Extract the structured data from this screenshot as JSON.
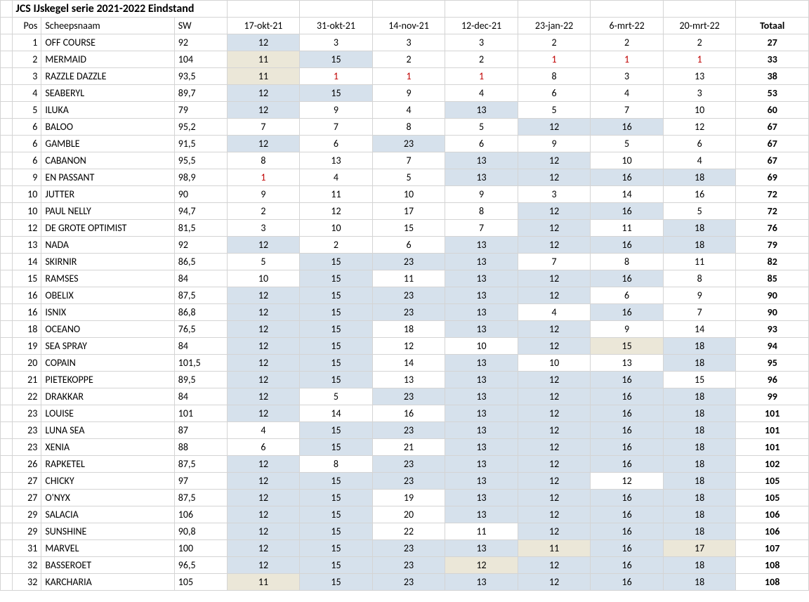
{
  "title": "JCS IJskegel serie 2021-2022  Eindstand",
  "headers": {
    "pos": "Pos",
    "name": "Scheepsnaam",
    "sw": "SW",
    "races": [
      "17-okt-21",
      "31-okt-21",
      "14-nov-21",
      "12-dec-21",
      "23-jan-22",
      "6-mrt-22",
      "20-mrt-22"
    ],
    "total": "Totaal"
  },
  "rows": [
    {
      "pos": "1",
      "name": "OFF COURSE",
      "sw": "92",
      "cells": [
        {
          "v": "12",
          "bg": "blue"
        },
        {
          "v": "3"
        },
        {
          "v": "3"
        },
        {
          "v": "3"
        },
        {
          "v": "2"
        },
        {
          "v": "2"
        },
        {
          "v": "2"
        }
      ],
      "total": "27"
    },
    {
      "pos": "2",
      "name": "MERMAID",
      "sw": "104",
      "cells": [
        {
          "v": "11",
          "bg": "cream"
        },
        {
          "v": "15",
          "bg": "blue"
        },
        {
          "v": "2"
        },
        {
          "v": "2"
        },
        {
          "v": "1",
          "red": true
        },
        {
          "v": "1",
          "red": true
        },
        {
          "v": "1",
          "red": true
        }
      ],
      "total": "33"
    },
    {
      "pos": "3",
      "name": "RAZZLE DAZZLE",
      "sw": "93,5",
      "cells": [
        {
          "v": "11",
          "bg": "cream"
        },
        {
          "v": "1",
          "red": true
        },
        {
          "v": "1",
          "red": true
        },
        {
          "v": "1",
          "red": true
        },
        {
          "v": "8"
        },
        {
          "v": "3"
        },
        {
          "v": "13"
        }
      ],
      "total": "38"
    },
    {
      "pos": "4",
      "name": "SEABERYL",
      "sw": "89,7",
      "cells": [
        {
          "v": "12",
          "bg": "blue"
        },
        {
          "v": "15",
          "bg": "blue"
        },
        {
          "v": "9"
        },
        {
          "v": "4"
        },
        {
          "v": "6"
        },
        {
          "v": "4"
        },
        {
          "v": "3"
        }
      ],
      "total": "53"
    },
    {
      "pos": "5",
      "name": "ILUKA",
      "sw": "79",
      "cells": [
        {
          "v": "12",
          "bg": "blue"
        },
        {
          "v": "9"
        },
        {
          "v": "4"
        },
        {
          "v": "13",
          "bg": "blue"
        },
        {
          "v": "5"
        },
        {
          "v": "7"
        },
        {
          "v": "10"
        }
      ],
      "total": "60"
    },
    {
      "pos": "6",
      "name": "BALOO",
      "sw": "95,2",
      "cells": [
        {
          "v": "7"
        },
        {
          "v": "7"
        },
        {
          "v": "8"
        },
        {
          "v": "5"
        },
        {
          "v": "12",
          "bg": "blue"
        },
        {
          "v": "16",
          "bg": "blue"
        },
        {
          "v": "12"
        }
      ],
      "total": "67"
    },
    {
      "pos": "6",
      "name": "GAMBLE",
      "sw": "91,5",
      "cells": [
        {
          "v": "12",
          "bg": "blue"
        },
        {
          "v": "6"
        },
        {
          "v": "23",
          "bg": "blue"
        },
        {
          "v": "6"
        },
        {
          "v": "9"
        },
        {
          "v": "5"
        },
        {
          "v": "6"
        }
      ],
      "total": "67"
    },
    {
      "pos": "6",
      "name": "CABANON",
      "sw": "95,5",
      "cells": [
        {
          "v": "8"
        },
        {
          "v": "13"
        },
        {
          "v": "7"
        },
        {
          "v": "13",
          "bg": "blue"
        },
        {
          "v": "12",
          "bg": "blue"
        },
        {
          "v": "10"
        },
        {
          "v": "4"
        }
      ],
      "total": "67"
    },
    {
      "pos": "9",
      "name": "EN PASSANT",
      "sw": "98,9",
      "cells": [
        {
          "v": "1",
          "red": true
        },
        {
          "v": "4"
        },
        {
          "v": "5"
        },
        {
          "v": "13",
          "bg": "blue"
        },
        {
          "v": "12",
          "bg": "blue"
        },
        {
          "v": "16",
          "bg": "blue"
        },
        {
          "v": "18",
          "bg": "blue"
        }
      ],
      "total": "69"
    },
    {
      "pos": "10",
      "name": "JUTTER",
      "sw": "90",
      "cells": [
        {
          "v": "9"
        },
        {
          "v": "11"
        },
        {
          "v": "10"
        },
        {
          "v": "9"
        },
        {
          "v": "3"
        },
        {
          "v": "14"
        },
        {
          "v": "16"
        }
      ],
      "total": "72"
    },
    {
      "pos": "10",
      "name": "PAUL NELLY",
      "sw": "94,7",
      "cells": [
        {
          "v": "2"
        },
        {
          "v": "12"
        },
        {
          "v": "17"
        },
        {
          "v": "8"
        },
        {
          "v": "12",
          "bg": "blue"
        },
        {
          "v": "16",
          "bg": "blue"
        },
        {
          "v": "5"
        }
      ],
      "total": "72"
    },
    {
      "pos": "12",
      "name": "DE GROTE OPTIMIST",
      "sw": "81,5",
      "cells": [
        {
          "v": "3"
        },
        {
          "v": "10"
        },
        {
          "v": "15"
        },
        {
          "v": "7"
        },
        {
          "v": "12",
          "bg": "blue"
        },
        {
          "v": "11"
        },
        {
          "v": "18",
          "bg": "blue"
        }
      ],
      "total": "76"
    },
    {
      "pos": "13",
      "name": "NADA",
      "sw": "92",
      "cells": [
        {
          "v": "12",
          "bg": "blue"
        },
        {
          "v": "2"
        },
        {
          "v": "6"
        },
        {
          "v": "13",
          "bg": "blue"
        },
        {
          "v": "12",
          "bg": "blue"
        },
        {
          "v": "16",
          "bg": "blue"
        },
        {
          "v": "18",
          "bg": "blue"
        }
      ],
      "total": "79"
    },
    {
      "pos": "14",
      "name": "SKIRNIR",
      "sw": "86,5",
      "cells": [
        {
          "v": "5"
        },
        {
          "v": "15",
          "bg": "blue"
        },
        {
          "v": "23",
          "bg": "blue"
        },
        {
          "v": "13",
          "bg": "blue"
        },
        {
          "v": "7"
        },
        {
          "v": "8"
        },
        {
          "v": "11"
        }
      ],
      "total": "82"
    },
    {
      "pos": "15",
      "name": "RAMSES",
      "sw": "84",
      "cells": [
        {
          "v": "10"
        },
        {
          "v": "15",
          "bg": "blue"
        },
        {
          "v": "11"
        },
        {
          "v": "13",
          "bg": "blue"
        },
        {
          "v": "12",
          "bg": "blue"
        },
        {
          "v": "16",
          "bg": "blue"
        },
        {
          "v": "8"
        }
      ],
      "total": "85"
    },
    {
      "pos": "16",
      "name": "OBELIX",
      "sw": "87,5",
      "cells": [
        {
          "v": "12",
          "bg": "blue"
        },
        {
          "v": "15",
          "bg": "blue"
        },
        {
          "v": "23",
          "bg": "blue"
        },
        {
          "v": "13",
          "bg": "blue"
        },
        {
          "v": "12",
          "bg": "blue"
        },
        {
          "v": "6"
        },
        {
          "v": "9"
        }
      ],
      "total": "90"
    },
    {
      "pos": "16",
      "name": "ISNIX",
      "sw": "86,8",
      "cells": [
        {
          "v": "12",
          "bg": "blue"
        },
        {
          "v": "15",
          "bg": "blue"
        },
        {
          "v": "23",
          "bg": "blue"
        },
        {
          "v": "13",
          "bg": "blue"
        },
        {
          "v": "4"
        },
        {
          "v": "16",
          "bg": "blue"
        },
        {
          "v": "7"
        }
      ],
      "total": "90"
    },
    {
      "pos": "18",
      "name": "OCEANO",
      "sw": "76,5",
      "cells": [
        {
          "v": "12",
          "bg": "blue"
        },
        {
          "v": "15",
          "bg": "blue"
        },
        {
          "v": "18"
        },
        {
          "v": "13",
          "bg": "blue"
        },
        {
          "v": "12",
          "bg": "blue"
        },
        {
          "v": "9"
        },
        {
          "v": "14"
        }
      ],
      "total": "93"
    },
    {
      "pos": "19",
      "name": "SEA SPRAY",
      "sw": "84",
      "cells": [
        {
          "v": "12",
          "bg": "blue"
        },
        {
          "v": "15",
          "bg": "blue"
        },
        {
          "v": "12"
        },
        {
          "v": "10"
        },
        {
          "v": "12",
          "bg": "blue"
        },
        {
          "v": "15",
          "bg": "cream"
        },
        {
          "v": "18",
          "bg": "blue"
        }
      ],
      "total": "94"
    },
    {
      "pos": "20",
      "name": "COPAIN",
      "sw": "101,5",
      "cells": [
        {
          "v": "12",
          "bg": "blue"
        },
        {
          "v": "15",
          "bg": "blue"
        },
        {
          "v": "14"
        },
        {
          "v": "13",
          "bg": "blue"
        },
        {
          "v": "10"
        },
        {
          "v": "13"
        },
        {
          "v": "18",
          "bg": "blue"
        }
      ],
      "total": "95"
    },
    {
      "pos": "21",
      "name": "PIETEKOPPE",
      "sw": "89,5",
      "cells": [
        {
          "v": "12",
          "bg": "blue"
        },
        {
          "v": "15",
          "bg": "blue"
        },
        {
          "v": "13"
        },
        {
          "v": "13",
          "bg": "blue"
        },
        {
          "v": "12",
          "bg": "blue"
        },
        {
          "v": "16",
          "bg": "blue"
        },
        {
          "v": "15"
        }
      ],
      "total": "96"
    },
    {
      "pos": "22",
      "name": "DRAKKAR",
      "sw": "84",
      "cells": [
        {
          "v": "12",
          "bg": "blue"
        },
        {
          "v": "5"
        },
        {
          "v": "23",
          "bg": "blue"
        },
        {
          "v": "13",
          "bg": "blue"
        },
        {
          "v": "12",
          "bg": "blue"
        },
        {
          "v": "16",
          "bg": "blue"
        },
        {
          "v": "18",
          "bg": "blue"
        }
      ],
      "total": "99"
    },
    {
      "pos": "23",
      "name": "LOUISE",
      "sw": "101",
      "cells": [
        {
          "v": "12",
          "bg": "blue"
        },
        {
          "v": "14"
        },
        {
          "v": "16"
        },
        {
          "v": "13",
          "bg": "blue"
        },
        {
          "v": "12",
          "bg": "blue"
        },
        {
          "v": "16",
          "bg": "blue"
        },
        {
          "v": "18",
          "bg": "blue"
        }
      ],
      "total": "101"
    },
    {
      "pos": "23",
      "name": "LUNA SEA",
      "sw": "87",
      "cells": [
        {
          "v": "4"
        },
        {
          "v": "15",
          "bg": "blue"
        },
        {
          "v": "23",
          "bg": "blue"
        },
        {
          "v": "13",
          "bg": "blue"
        },
        {
          "v": "12",
          "bg": "blue"
        },
        {
          "v": "16",
          "bg": "blue"
        },
        {
          "v": "18",
          "bg": "blue"
        }
      ],
      "total": "101"
    },
    {
      "pos": "23",
      "name": "XENIA",
      "sw": "88",
      "cells": [
        {
          "v": "6"
        },
        {
          "v": "15",
          "bg": "blue"
        },
        {
          "v": "21"
        },
        {
          "v": "13",
          "bg": "blue"
        },
        {
          "v": "12",
          "bg": "blue"
        },
        {
          "v": "16",
          "bg": "blue"
        },
        {
          "v": "18",
          "bg": "blue"
        }
      ],
      "total": "101"
    },
    {
      "pos": "26",
      "name": "RAPKETEL",
      "sw": "87,5",
      "cells": [
        {
          "v": "12",
          "bg": "blue"
        },
        {
          "v": "8"
        },
        {
          "v": "23",
          "bg": "blue"
        },
        {
          "v": "13",
          "bg": "blue"
        },
        {
          "v": "12",
          "bg": "blue"
        },
        {
          "v": "16",
          "bg": "blue"
        },
        {
          "v": "18",
          "bg": "blue"
        }
      ],
      "total": "102"
    },
    {
      "pos": "27",
      "name": "CHICKY",
      "sw": "97",
      "cells": [
        {
          "v": "12",
          "bg": "blue"
        },
        {
          "v": "15",
          "bg": "blue"
        },
        {
          "v": "23",
          "bg": "blue"
        },
        {
          "v": "13",
          "bg": "blue"
        },
        {
          "v": "12",
          "bg": "blue"
        },
        {
          "v": "12"
        },
        {
          "v": "18",
          "bg": "blue"
        }
      ],
      "total": "105"
    },
    {
      "pos": "27",
      "name": "O'NYX",
      "sw": "87,5",
      "cells": [
        {
          "v": "12",
          "bg": "blue"
        },
        {
          "v": "15",
          "bg": "blue"
        },
        {
          "v": "19"
        },
        {
          "v": "13",
          "bg": "blue"
        },
        {
          "v": "12",
          "bg": "blue"
        },
        {
          "v": "16",
          "bg": "blue"
        },
        {
          "v": "18",
          "bg": "blue"
        }
      ],
      "total": "105"
    },
    {
      "pos": "29",
      "name": "SALACIA",
      "sw": "106",
      "cells": [
        {
          "v": "12",
          "bg": "blue"
        },
        {
          "v": "15",
          "bg": "blue"
        },
        {
          "v": "20"
        },
        {
          "v": "13",
          "bg": "blue"
        },
        {
          "v": "12",
          "bg": "blue"
        },
        {
          "v": "16",
          "bg": "blue"
        },
        {
          "v": "18",
          "bg": "blue"
        }
      ],
      "total": "106"
    },
    {
      "pos": "29",
      "name": "SUNSHINE",
      "sw": "90,8",
      "cells": [
        {
          "v": "12",
          "bg": "blue"
        },
        {
          "v": "15",
          "bg": "blue"
        },
        {
          "v": "22"
        },
        {
          "v": "11"
        },
        {
          "v": "12",
          "bg": "blue"
        },
        {
          "v": "16",
          "bg": "blue"
        },
        {
          "v": "18",
          "bg": "blue"
        }
      ],
      "total": "106"
    },
    {
      "pos": "31",
      "name": "MARVEL",
      "sw": "100",
      "cells": [
        {
          "v": "12",
          "bg": "blue"
        },
        {
          "v": "15",
          "bg": "blue"
        },
        {
          "v": "23",
          "bg": "blue"
        },
        {
          "v": "13",
          "bg": "blue"
        },
        {
          "v": "11",
          "bg": "cream"
        },
        {
          "v": "16",
          "bg": "blue"
        },
        {
          "v": "17",
          "bg": "cream"
        }
      ],
      "total": "107"
    },
    {
      "pos": "32",
      "name": "BASSEROET",
      "sw": "96,5",
      "cells": [
        {
          "v": "12",
          "bg": "blue"
        },
        {
          "v": "15",
          "bg": "blue"
        },
        {
          "v": "23",
          "bg": "blue"
        },
        {
          "v": "12",
          "bg": "cream"
        },
        {
          "v": "12",
          "bg": "blue"
        },
        {
          "v": "16",
          "bg": "blue"
        },
        {
          "v": "18",
          "bg": "blue"
        }
      ],
      "total": "108"
    },
    {
      "pos": "32",
      "name": "KARCHARIA",
      "sw": "105",
      "cells": [
        {
          "v": "11",
          "bg": "cream"
        },
        {
          "v": "15",
          "bg": "blue"
        },
        {
          "v": "23",
          "bg": "blue"
        },
        {
          "v": "13",
          "bg": "blue"
        },
        {
          "v": "12",
          "bg": "blue"
        },
        {
          "v": "16",
          "bg": "blue"
        },
        {
          "v": "18",
          "bg": "blue"
        }
      ],
      "total": "108"
    }
  ],
  "colors": {
    "cell_highlight_blue": "#d6e1ec",
    "cell_highlight_cream": "#ebe7d8",
    "text_red": "#c00000",
    "grid": "#d4d4d4",
    "background": "#ffffff"
  },
  "typography": {
    "font_family": "Calibri",
    "base_size_pt": 11,
    "title_size_pt": 12,
    "title_weight": 700
  }
}
